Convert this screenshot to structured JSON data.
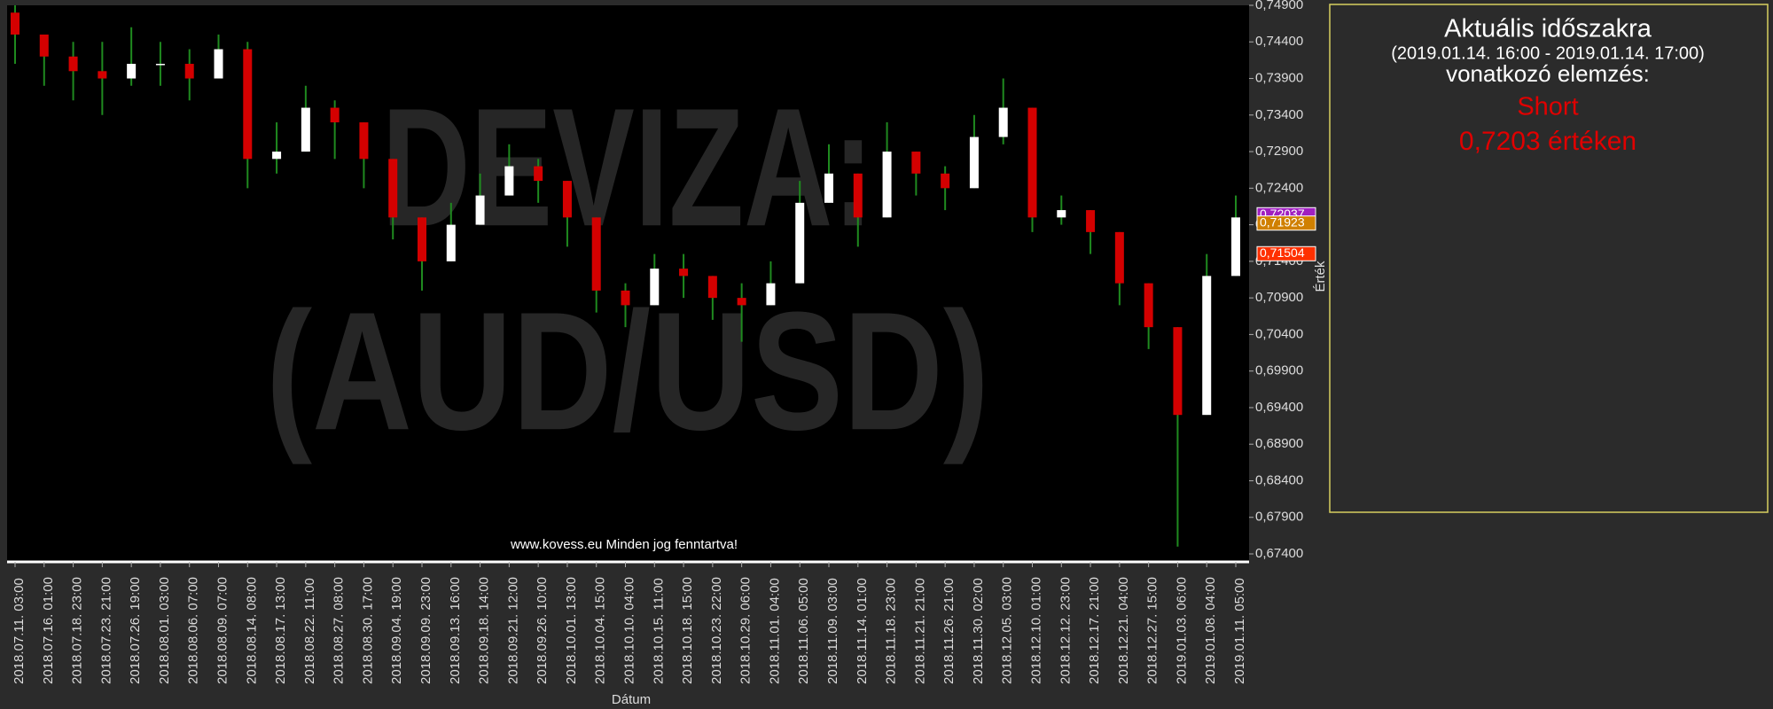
{
  "chart_data": {
    "type": "candlestick",
    "watermark": [
      "DEVIZA:",
      "(AUD/USD)"
    ],
    "footer": "www.kovess.eu Minden jog fenntartva!",
    "x_label": "Dátum",
    "y_label": "Érték",
    "categories": [
      "2018.07.11. 03:00",
      "2018.07.16. 01:00",
      "2018.07.18. 23:00",
      "2018.07.23. 21:00",
      "2018.07.26. 19:00",
      "2018.08.01. 03:00",
      "2018.08.06. 07:00",
      "2018.08.09. 07:00",
      "2018.08.14. 08:00",
      "2018.08.17. 13:00",
      "2018.08.22. 11:00",
      "2018.08.27. 08:00",
      "2018.08.30. 17:00",
      "2018.09.04. 19:00",
      "2018.09.09. 23:00",
      "2018.09.13. 16:00",
      "2018.09.18. 14:00",
      "2018.09.21. 12:00",
      "2018.09.26. 10:00",
      "2018.10.01. 13:00",
      "2018.10.04. 15:00",
      "2018.10.10. 04:00",
      "2018.10.15. 11:00",
      "2018.10.18. 15:00",
      "2018.10.23. 22:00",
      "2018.10.29. 06:00",
      "2018.11.01. 04:00",
      "2018.11.06. 05:00",
      "2018.11.09. 03:00",
      "2018.11.14. 01:00",
      "2018.11.18. 23:00",
      "2018.11.21. 21:00",
      "2018.11.26. 21:00",
      "2018.11.30. 02:00",
      "2018.12.05. 03:00",
      "2018.12.10. 01:00",
      "2018.12.12. 23:00",
      "2018.12.17. 21:00",
      "2018.12.21. 04:00",
      "2018.12.27. 15:00",
      "2019.01.03. 06:00",
      "2019.01.08. 04:00",
      "2019.01.11. 05:00"
    ],
    "open": [
      0.748,
      0.745,
      0.742,
      0.74,
      0.739,
      0.741,
      0.741,
      0.739,
      0.743,
      0.728,
      0.729,
      0.735,
      0.733,
      0.728,
      0.72,
      0.714,
      0.719,
      0.723,
      0.727,
      0.725,
      0.72,
      0.71,
      0.708,
      0.713,
      0.712,
      0.709,
      0.708,
      0.711,
      0.722,
      0.726,
      0.72,
      0.729,
      0.726,
      0.724,
      0.731,
      0.735,
      0.72,
      0.721,
      0.718,
      0.711,
      0.705,
      0.693,
      0.712
    ],
    "high": [
      0.749,
      0.745,
      0.744,
      0.744,
      0.746,
      0.744,
      0.743,
      0.745,
      0.744,
      0.733,
      0.738,
      0.736,
      0.733,
      0.728,
      0.72,
      0.722,
      0.726,
      0.73,
      0.728,
      0.725,
      0.72,
      0.711,
      0.715,
      0.715,
      0.712,
      0.711,
      0.714,
      0.725,
      0.73,
      0.726,
      0.733,
      0.729,
      0.727,
      0.734,
      0.739,
      0.735,
      0.723,
      0.721,
      0.718,
      0.711,
      0.705,
      0.715,
      0.723
    ],
    "low": [
      0.741,
      0.738,
      0.736,
      0.734,
      0.738,
      0.738,
      0.736,
      0.739,
      0.724,
      0.726,
      0.729,
      0.728,
      0.724,
      0.717,
      0.71,
      0.714,
      0.719,
      0.723,
      0.722,
      0.716,
      0.707,
      0.705,
      0.708,
      0.709,
      0.706,
      0.703,
      0.708,
      0.711,
      0.722,
      0.716,
      0.72,
      0.723,
      0.721,
      0.724,
      0.73,
      0.718,
      0.719,
      0.715,
      0.708,
      0.702,
      0.675,
      0.693,
      0.712
    ],
    "close": [
      0.745,
      0.742,
      0.74,
      0.739,
      0.741,
      0.741,
      0.739,
      0.743,
      0.728,
      0.729,
      0.735,
      0.733,
      0.728,
      0.72,
      0.714,
      0.719,
      0.723,
      0.727,
      0.725,
      0.72,
      0.71,
      0.708,
      0.713,
      0.712,
      0.709,
      0.708,
      0.711,
      0.722,
      0.726,
      0.72,
      0.729,
      0.726,
      0.724,
      0.731,
      0.735,
      0.72,
      0.721,
      0.718,
      0.711,
      0.705,
      0.693,
      0.712,
      0.72
    ],
    "up_color": "#ffffff",
    "down_color": "#d40000",
    "wick_color": "#1f8a1f",
    "ylim": [
      0.674,
      0.749
    ],
    "yticks": [
      {
        "value": 0.674,
        "label": "0,67400"
      },
      {
        "value": 0.679,
        "label": "0,67900"
      },
      {
        "value": 0.684,
        "label": "0,68400"
      },
      {
        "value": 0.689,
        "label": "0,68900"
      },
      {
        "value": 0.694,
        "label": "0,69400"
      },
      {
        "value": 0.699,
        "label": "0,69900"
      },
      {
        "value": 0.704,
        "label": "0,70400"
      },
      {
        "value": 0.709,
        "label": "0,70900"
      },
      {
        "value": 0.714,
        "label": "0,71400"
      },
      {
        "value": 0.719,
        "label": "0,71900"
      },
      {
        "value": 0.724,
        "label": "0,72400"
      },
      {
        "value": 0.729,
        "label": "0,72900"
      },
      {
        "value": 0.734,
        "label": "0,73400"
      },
      {
        "value": 0.739,
        "label": "0,73900"
      },
      {
        "value": 0.744,
        "label": "0,74400"
      },
      {
        "value": 0.749,
        "label": "0,74900"
      }
    ],
    "price_tags": [
      {
        "value": 0.72037,
        "label": "0,72037",
        "color": "#a020c0"
      },
      {
        "value": 0.71923,
        "label": "0,71923",
        "color": "#d08000"
      },
      {
        "value": 0.71504,
        "label": "0,71504",
        "color": "#ff3000"
      }
    ]
  },
  "panel": {
    "title": "Aktuális időszakra",
    "period": "(2019.01.14. 16:00 - 2019.01.14. 17:00)",
    "subtitle": "vonatkozó elemzés:",
    "signal": "Short",
    "price_text": "0,7203 értéken"
  }
}
